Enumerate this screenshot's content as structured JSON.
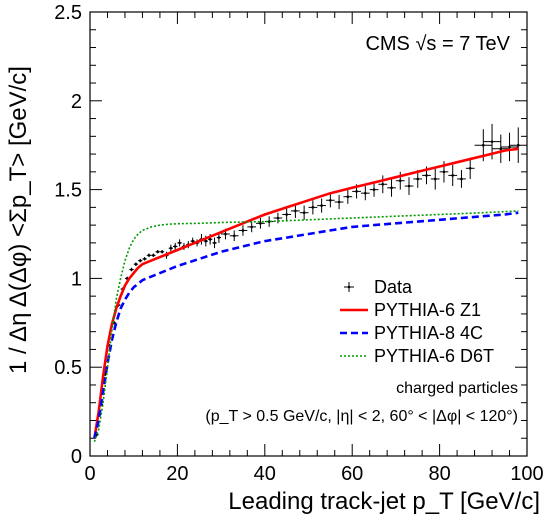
{
  "chart_data": {
    "type": "line",
    "title": "CMS √s = 7 TeV",
    "xlabel": "Leading track-jet p_T [GeV/c]",
    "ylabel": "1 / Δη Δ(Δφ) <Σp_T> [GeV/c]",
    "xlim": [
      0,
      100
    ],
    "ylim": [
      0,
      2.5
    ],
    "xticks": [
      "0",
      "20",
      "40",
      "60",
      "80",
      "100"
    ],
    "yticks": [
      "0",
      "0.5",
      "1",
      "1.5",
      "2",
      "2.5"
    ],
    "legend_position": "bottom-right",
    "annotations": [
      "charged particles",
      "(p_T > 0.5 GeV/c, |η| < 2, 60° < |Δφ| < 120°)"
    ],
    "data": {
      "name": "Data",
      "x": [
        1.5,
        2.5,
        3.5,
        4.5,
        5.5,
        6.5,
        7.5,
        8.5,
        9.5,
        10.5,
        11.5,
        12.5,
        13.5,
        14.5,
        15.5,
        16.5,
        17.5,
        18.5,
        19.5,
        20.5,
        21.5,
        22.5,
        23.5,
        24.5,
        25.5,
        26.5,
        27.5,
        28.5,
        29.5,
        31,
        33,
        35,
        37,
        39,
        41,
        43,
        45,
        47,
        49,
        51,
        53,
        55,
        57,
        59,
        61,
        63,
        65,
        67,
        69,
        71,
        73,
        75,
        77,
        79,
        81,
        83,
        85,
        87,
        90,
        92,
        94,
        96,
        98
      ],
      "y": [
        0.12,
        0.29,
        0.46,
        0.62,
        0.75,
        0.85,
        0.94,
        1.0,
        1.05,
        1.08,
        1.1,
        1.11,
        1.13,
        1.13,
        1.15,
        1.15,
        1.13,
        1.17,
        1.18,
        1.2,
        1.18,
        1.19,
        1.21,
        1.2,
        1.22,
        1.21,
        1.22,
        1.2,
        1.23,
        1.25,
        1.24,
        1.27,
        1.29,
        1.31,
        1.32,
        1.34,
        1.36,
        1.38,
        1.37,
        1.4,
        1.41,
        1.44,
        1.43,
        1.46,
        1.49,
        1.48,
        1.5,
        1.53,
        1.51,
        1.55,
        1.52,
        1.56,
        1.58,
        1.56,
        1.6,
        1.58,
        1.56,
        1.62,
        1.75,
        1.77,
        1.73,
        1.74,
        1.75
      ],
      "yerr": [
        0.01,
        0.01,
        0.01,
        0.01,
        0.01,
        0.01,
        0.01,
        0.01,
        0.01,
        0.01,
        0.01,
        0.01,
        0.01,
        0.01,
        0.01,
        0.01,
        0.02,
        0.02,
        0.02,
        0.02,
        0.02,
        0.02,
        0.02,
        0.02,
        0.03,
        0.03,
        0.03,
        0.03,
        0.03,
        0.03,
        0.03,
        0.03,
        0.03,
        0.03,
        0.03,
        0.03,
        0.04,
        0.04,
        0.04,
        0.04,
        0.04,
        0.04,
        0.04,
        0.04,
        0.04,
        0.04,
        0.04,
        0.05,
        0.05,
        0.05,
        0.05,
        0.05,
        0.05,
        0.06,
        0.06,
        0.06,
        0.05,
        0.06,
        0.09,
        0.1,
        0.08,
        0.08,
        0.1
      ],
      "xerr": [
        0.5,
        0.5,
        0.5,
        0.5,
        0.5,
        0.5,
        0.5,
        0.5,
        0.5,
        0.5,
        0.5,
        0.5,
        0.5,
        0.5,
        0.5,
        0.5,
        0.5,
        0.5,
        0.5,
        0.5,
        0.5,
        0.5,
        0.5,
        0.5,
        0.5,
        0.5,
        0.5,
        0.5,
        0.5,
        1,
        1,
        1,
        1,
        1,
        1,
        1,
        1,
        1,
        1,
        1,
        1,
        1,
        1,
        1,
        1,
        1,
        1,
        1,
        1,
        1,
        1,
        1,
        1,
        1,
        1,
        1,
        1,
        1,
        2,
        2,
        2,
        2,
        2
      ],
      "color": "#000000"
    },
    "series": [
      {
        "name": "PYTHIA-6 Z1",
        "color": "#ff0000",
        "style": "solid",
        "x": [
          1,
          2,
          3,
          4,
          5,
          6,
          7,
          8,
          9,
          10,
          11,
          12,
          14,
          16,
          18,
          20,
          25,
          30,
          35,
          40,
          45,
          50,
          55,
          60,
          65,
          70,
          75,
          80,
          85,
          90,
          95,
          98
        ],
        "y": [
          0.1,
          0.25,
          0.45,
          0.62,
          0.74,
          0.83,
          0.9,
          0.96,
          1.0,
          1.03,
          1.06,
          1.08,
          1.1,
          1.12,
          1.14,
          1.16,
          1.21,
          1.26,
          1.31,
          1.36,
          1.4,
          1.44,
          1.48,
          1.51,
          1.54,
          1.57,
          1.6,
          1.63,
          1.66,
          1.69,
          1.72,
          1.73
        ]
      },
      {
        "name": "PYTHIA-8 4C",
        "color": "#0000ff",
        "style": "dashed",
        "x": [
          1,
          2,
          3,
          4,
          5,
          6,
          7,
          8,
          9,
          10,
          11,
          12,
          15,
          18,
          20,
          25,
          30,
          35,
          40,
          45,
          50,
          55,
          60,
          65,
          70,
          75,
          80,
          85,
          90,
          95,
          98
        ],
        "y": [
          0.1,
          0.2,
          0.36,
          0.52,
          0.65,
          0.75,
          0.83,
          0.88,
          0.92,
          0.95,
          0.97,
          0.99,
          1.02,
          1.05,
          1.07,
          1.11,
          1.15,
          1.18,
          1.21,
          1.23,
          1.25,
          1.27,
          1.29,
          1.3,
          1.31,
          1.32,
          1.33,
          1.34,
          1.35,
          1.36,
          1.37
        ]
      },
      {
        "name": "PYTHIA-6 D6T",
        "color": "#009900",
        "style": "dotted",
        "x": [
          1,
          2,
          3,
          4,
          5,
          6,
          7,
          8,
          9,
          10,
          11,
          12,
          13,
          14,
          15,
          16,
          18,
          20,
          25,
          30,
          40,
          50,
          60,
          70,
          80,
          90,
          98
        ],
        "y": [
          0.08,
          0.15,
          0.3,
          0.5,
          0.7,
          0.88,
          1.0,
          1.1,
          1.17,
          1.22,
          1.25,
          1.27,
          1.28,
          1.29,
          1.295,
          1.3,
          1.305,
          1.308,
          1.31,
          1.315,
          1.32,
          1.33,
          1.34,
          1.35,
          1.36,
          1.37,
          1.38
        ]
      }
    ]
  }
}
